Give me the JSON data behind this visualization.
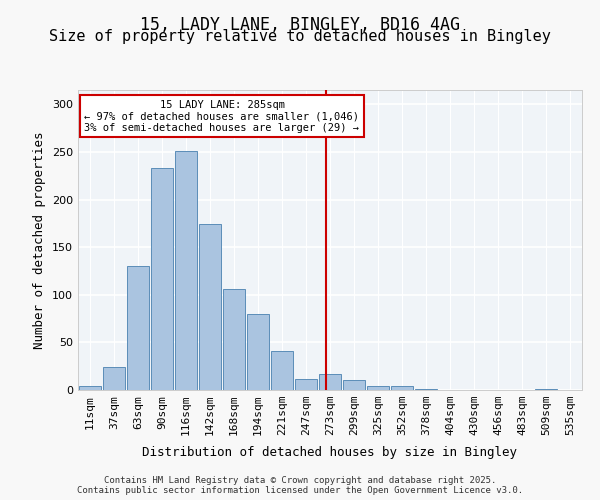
{
  "title_line1": "15, LADY LANE, BINGLEY, BD16 4AG",
  "title_line2": "Size of property relative to detached houses in Bingley",
  "xlabel": "Distribution of detached houses by size in Bingley",
  "ylabel": "Number of detached properties",
  "footer": "Contains HM Land Registry data © Crown copyright and database right 2025.\nContains public sector information licensed under the Open Government Licence v3.0.",
  "bin_labels": [
    "11sqm",
    "37sqm",
    "63sqm",
    "90sqm",
    "116sqm",
    "142sqm",
    "168sqm",
    "194sqm",
    "221sqm",
    "247sqm",
    "273sqm",
    "299sqm",
    "325sqm",
    "352sqm",
    "378sqm",
    "404sqm",
    "430sqm",
    "456sqm",
    "483sqm",
    "509sqm",
    "535sqm"
  ],
  "bar_values": [
    4,
    24,
    130,
    233,
    251,
    174,
    106,
    80,
    41,
    12,
    17,
    10,
    4,
    4,
    1,
    0,
    0,
    0,
    0,
    1
  ],
  "bar_color": "#aac4e0",
  "bar_edge_color": "#5b8db8",
  "annotation_text_line1": "15 LADY LANE: 285sqm",
  "annotation_text_line2": "← 97% of detached houses are smaller (1,046)",
  "annotation_text_line3": "3% of semi-detached houses are larger (29) →",
  "annotation_box_color": "#ffffff",
  "annotation_box_edge": "#cc0000",
  "vline_color": "#cc0000",
  "vline_x": 9.85,
  "ylim": [
    0,
    315
  ],
  "yticks": [
    0,
    50,
    100,
    150,
    200,
    250,
    300
  ],
  "background_color": "#f0f4f8",
  "fig_background_color": "#f8f8f8",
  "grid_color": "#ffffff",
  "title_fontsize": 12,
  "subtitle_fontsize": 11,
  "axis_label_fontsize": 9,
  "tick_fontsize": 8,
  "footer_fontsize": 6.5
}
